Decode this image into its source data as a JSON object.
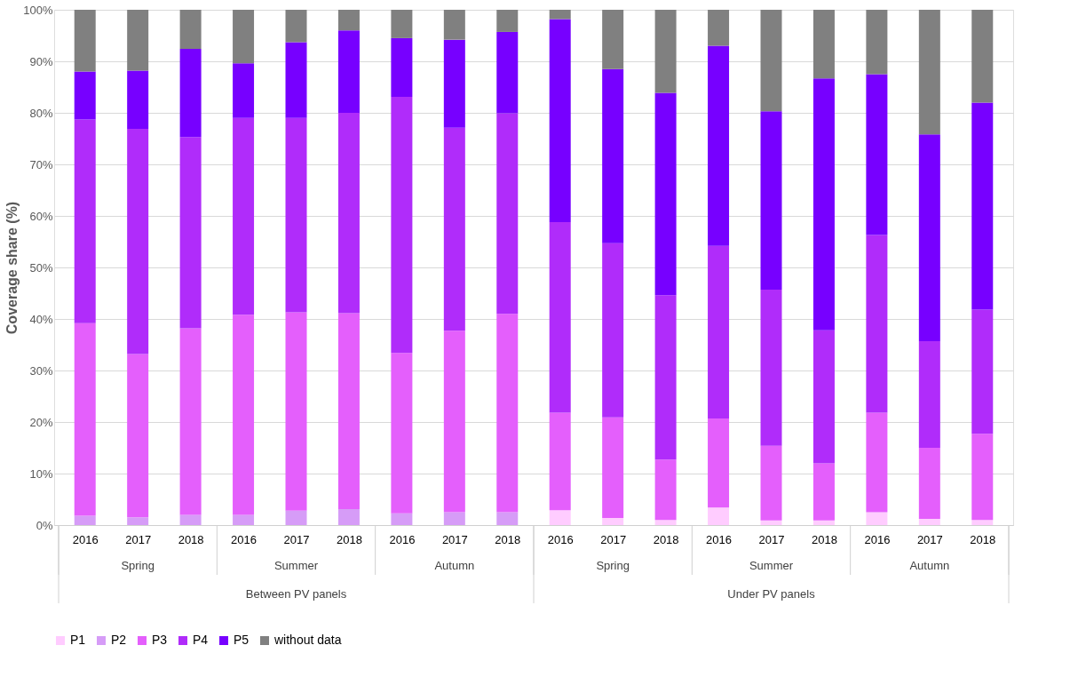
{
  "chart_data": {
    "type": "bar",
    "stacked": true,
    "ylabel": "Coverage share (%)",
    "categories": [
      "2016",
      "2017",
      "2018",
      "2016",
      "2017",
      "2018",
      "2016",
      "2017",
      "2018",
      "2016",
      "2017",
      "2018",
      "2016",
      "2017",
      "2018",
      "2016",
      "2017",
      "2018"
    ],
    "annotations": [
      "Spring",
      "Summer",
      "Autumn",
      "Spring",
      "Summer",
      "Autumn",
      "Between PV panels",
      "Under PV panels"
    ],
    "series": [
      {
        "name": "P1",
        "color": "#ffccff",
        "values": [
          0,
          0,
          0,
          0,
          0,
          0,
          0,
          0,
          0,
          2.9,
          1.4,
          1.0,
          3.4,
          0.9,
          0.9,
          2.5,
          1.2,
          1.0
        ]
      },
      {
        "name": "P2",
        "color": "#d69cf7",
        "values": [
          1.8,
          1.5,
          2.0,
          2.0,
          2.8,
          3.1,
          2.3,
          2.5,
          2.5,
          0,
          0,
          0,
          0,
          0,
          0,
          0,
          0,
          0
        ]
      },
      {
        "name": "P3",
        "color": "#e45ffc",
        "values": [
          37.4,
          31.7,
          36.2,
          38.8,
          38.5,
          38.0,
          31.1,
          35.2,
          38.5,
          18.9,
          19.5,
          11.7,
          17.3,
          14.5,
          11.1,
          19.3,
          13.8,
          16.7
        ]
      },
      {
        "name": "P4",
        "color": "#b02cfa",
        "values": [
          39.5,
          43.7,
          37.1,
          38.2,
          37.7,
          38.9,
          49.7,
          39.4,
          38.9,
          37.0,
          33.8,
          31.9,
          33.5,
          30.3,
          25.8,
          34.5,
          20.7,
          24.1
        ]
      },
      {
        "name": "P5",
        "color": "#7700ff",
        "values": [
          9.3,
          11.3,
          17.1,
          10.6,
          14.7,
          16.0,
          11.4,
          17.1,
          15.8,
          39.4,
          33.8,
          39.3,
          38.8,
          34.6,
          48.9,
          31.2,
          40.1,
          40.2
        ]
      },
      {
        "name": "without data",
        "color": "#808080",
        "values": [
          12.0,
          11.8,
          7.6,
          10.4,
          6.3,
          4.0,
          5.5,
          5.8,
          4.3,
          1.8,
          11.5,
          16.1,
          7.0,
          19.7,
          13.3,
          12.5,
          24.2,
          18.0
        ]
      }
    ],
    "ylim": [
      0,
      100
    ],
    "yticks": [
      {
        "value": 0,
        "label": "0%"
      },
      {
        "value": 10,
        "label": "10%"
      },
      {
        "value": 20,
        "label": "20%"
      },
      {
        "value": 30,
        "label": "30%"
      },
      {
        "value": 40,
        "label": "40%"
      },
      {
        "value": 50,
        "label": "50%"
      },
      {
        "value": 60,
        "label": "60%"
      },
      {
        "value": 70,
        "label": "70%"
      },
      {
        "value": 80,
        "label": "80%"
      },
      {
        "value": 90,
        "label": "90%"
      },
      {
        "value": 100,
        "label": "100%"
      }
    ],
    "grid": "y",
    "legend": "bottom"
  }
}
